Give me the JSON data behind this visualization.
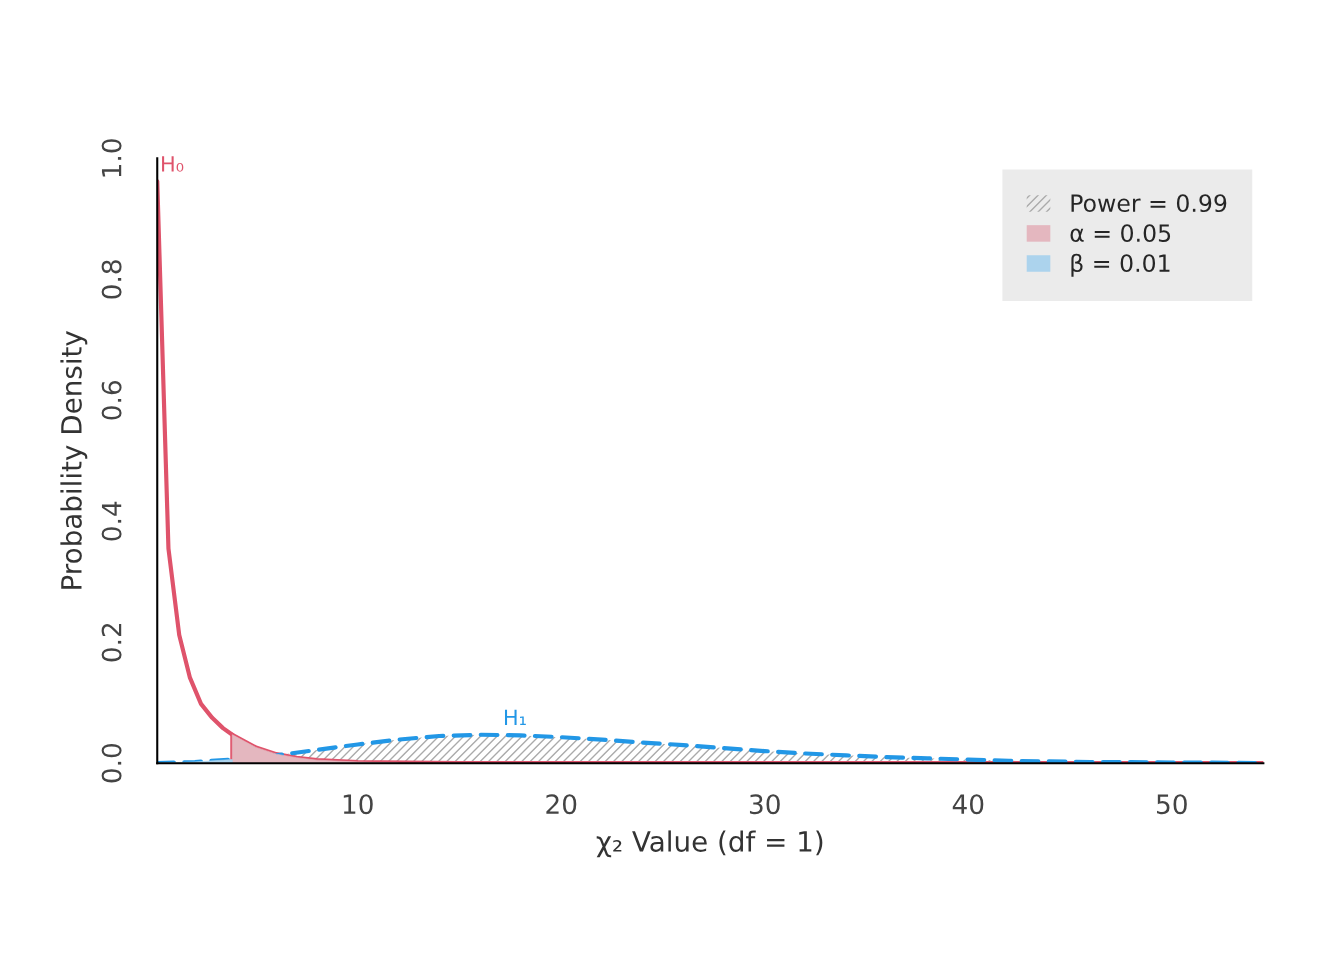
{
  "chart_data": {
    "type": "line",
    "xlabel": "χ₂ Value (df = 1)",
    "ylabel": "Probability Density",
    "xlim": [
      0.15,
      54.5
    ],
    "ylim": [
      0,
      1.0
    ],
    "xticks": [
      10,
      20,
      30,
      40,
      50
    ],
    "yticks": [
      {
        "value": 0,
        "label": "0.0"
      },
      0.2,
      0.4,
      0.6,
      0.8,
      {
        "value": 1,
        "label": "1.0"
      }
    ],
    "grid": false,
    "legend": "top right",
    "series": [
      {
        "type": "area",
        "name": "Power = 0.99",
        "color": "#aaaaaa",
        "x": [
          3.84,
          6,
          8,
          10,
          12,
          14,
          16,
          18,
          20,
          22,
          24,
          26,
          28,
          30,
          32,
          34,
          36,
          38,
          40,
          42,
          44,
          46,
          48,
          50,
          52,
          54.5
        ],
        "values": [
          0.006,
          0.013,
          0.022,
          0.031,
          0.039,
          0.045,
          0.047,
          0.046,
          0.043,
          0.039,
          0.034,
          0.03,
          0.025,
          0.02,
          0.016,
          0.013,
          0.01,
          0.008,
          0.006,
          0.004,
          0.003,
          0.002,
          0.002,
          0.001,
          0.001,
          0.0
        ]
      },
      {
        "type": "area",
        "name": "α = 0.05",
        "color": "#e4b7bf",
        "x": [
          3.84,
          4.5,
          5,
          6,
          7,
          8,
          10,
          12
        ],
        "values": [
          0.047,
          0.035,
          0.026,
          0.015,
          0.009,
          0.005,
          0.002,
          0.0
        ]
      },
      {
        "type": "area",
        "name": "β = 0.01",
        "color": "#acd3ed",
        "x": [
          0.15,
          2,
          3.84
        ],
        "values": [
          0.0,
          0.002,
          0.006
        ]
      },
      {
        "color": "#df536b",
        "line_style": "solid",
        "x": [
          0.15,
          0.7,
          1.23,
          1.75,
          2.3,
          2.85,
          3.38,
          3.84,
          4.5,
          5,
          6,
          7,
          8,
          10,
          15,
          54.5
        ],
        "values": [
          0.962,
          0.355,
          0.212,
          0.142,
          0.098,
          0.075,
          0.058,
          0.047,
          0.035,
          0.026,
          0.015,
          0.009,
          0.005,
          0.002,
          0.0,
          0.0
        ]
      },
      {
        "color": "#df536b",
        "line_style": "solid",
        "x": [
          3.84,
          3.84
        ],
        "values": [
          0.0,
          0.047
        ]
      },
      {
        "color": "#2297e6",
        "line_style": "dashed",
        "x": [
          0.15,
          2,
          3.84,
          6,
          8,
          10,
          12,
          14,
          16,
          18,
          20,
          22,
          24,
          26,
          28,
          30,
          32,
          34,
          36,
          38,
          40,
          42,
          44,
          46,
          48,
          50,
          52,
          54.5
        ],
        "values": [
          0.0,
          0.002,
          0.006,
          0.013,
          0.022,
          0.031,
          0.039,
          0.045,
          0.047,
          0.046,
          0.043,
          0.039,
          0.034,
          0.03,
          0.025,
          0.02,
          0.016,
          0.013,
          0.01,
          0.008,
          0.006,
          0.004,
          0.003,
          0.002,
          0.002,
          0.001,
          0.001,
          0.0
        ]
      }
    ],
    "annotations": [
      {
        "text": "H₀",
        "x": 0.15,
        "y": 0.962
      },
      {
        "text": "H₁",
        "x": 17,
        "y": 0.047
      }
    ]
  }
}
